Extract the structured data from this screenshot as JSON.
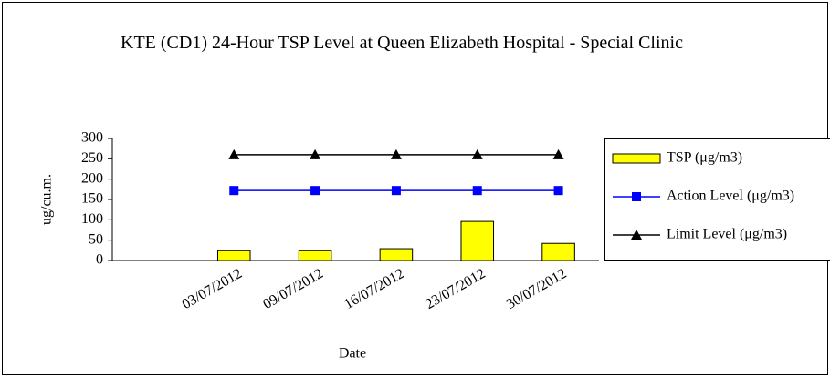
{
  "chart_data": {
    "type": "bar-line",
    "title": "KTE (CD1) 24-Hour TSP Level at Queen Elizabeth Hospital - Special Clinic",
    "x_label": "Date",
    "y_label": "ug/cu.m.",
    "categories": [
      null,
      "03/07/2012",
      "09/07/2012",
      "16/07/2012",
      "23/07/2012",
      "30/07/2012"
    ],
    "series": [
      {
        "name": "TSP (μg/m3)",
        "type": "bar",
        "color": "#ffff00",
        "values": [
          null,
          24,
          24,
          29,
          96,
          42
        ]
      },
      {
        "name": "Action Level (μg/m3)",
        "type": "line",
        "marker": "square",
        "color": "#0000ff",
        "values": [
          null,
          172,
          172,
          172,
          172,
          172
        ]
      },
      {
        "name": "Limit Level (μg/m3)",
        "type": "line",
        "marker": "triangle",
        "color": "#000000",
        "values": [
          null,
          260,
          260,
          260,
          260,
          260
        ]
      }
    ],
    "ylim": [
      0,
      300
    ],
    "yticks": [
      0,
      50,
      100,
      150,
      200,
      250,
      300
    ],
    "legend": "right"
  }
}
